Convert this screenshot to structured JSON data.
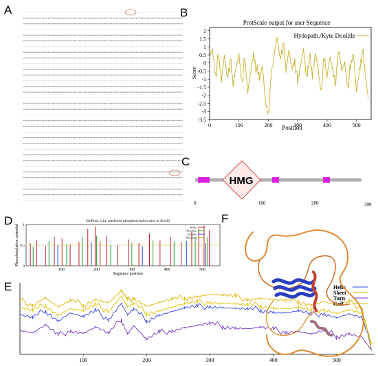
{
  "panels": {
    "a": {
      "letter": "A"
    },
    "b": {
      "letter": "B"
    },
    "c": {
      "letter": "C"
    },
    "d": {
      "letter": "D"
    },
    "e": {
      "letter": "E"
    },
    "f": {
      "letter": "F"
    }
  },
  "protscale": {
    "title": "ProtScale output for user Sequence",
    "legend": "Hydopath./Kyte Doolitle",
    "ylabel": "Score",
    "xlabel": "Position",
    "color": "#c8b030"
  },
  "domain_diagram": {
    "domain_label": "HMG",
    "ticks": [
      "0",
      "100",
      "200",
      "300"
    ],
    "motif_color": "#e020e0",
    "domain_border": "#d05050"
  },
  "netphos": {
    "title": "NetPhos 3.1a: predicted phosphorylation sites in Sox30",
    "ylabel": "Phosphorylation potential",
    "xlabel": "Sequence position",
    "legend": [
      "Serine",
      "Threonine",
      "Tyrosine",
      "Threshold"
    ],
    "colors": [
      "#c03030",
      "#40a040",
      "#3050d0",
      "#c0a000"
    ]
  },
  "secondary": {
    "legend": [
      "Helix",
      "Sheet",
      "Turn",
      "Coil"
    ],
    "colors": [
      "#3040e0",
      "#e0b000",
      "#7030c0",
      "#e0c000"
    ]
  },
  "chart_data": [
    {
      "type": "line",
      "title": "ProtScale output for user Sequence",
      "xlabel": "Position",
      "ylabel": "Score",
      "xlim": [
        0,
        550
      ],
      "ylim": [
        -3.5,
        2.2
      ],
      "x_ticks": [
        "0",
        "100",
        "200",
        "300",
        "400",
        "500"
      ],
      "y_ticks": [
        "2",
        "1.5",
        "1",
        "0.5",
        "0",
        "-0.5",
        "-1",
        "-1.5",
        "-2",
        "-2.5",
        "-3",
        "-3.5"
      ],
      "series": [
        {
          "name": "Hydopath./Kyte Doolitle",
          "x": [
            0,
            10,
            20,
            30,
            40,
            50,
            60,
            70,
            80,
            90,
            100,
            110,
            120,
            130,
            140,
            150,
            160,
            170,
            180,
            190,
            200,
            210,
            220,
            230,
            240,
            250,
            260,
            270,
            280,
            290,
            300,
            310,
            320,
            330,
            340,
            350,
            360,
            370,
            380,
            390,
            400,
            410,
            420,
            430,
            440,
            450,
            460,
            470,
            480,
            490,
            500,
            510,
            520,
            530,
            540
          ],
          "y": [
            0.4,
            0.9,
            -0.6,
            0.3,
            -1.2,
            0.5,
            -0.8,
            0.2,
            -1.5,
            -0.3,
            0.6,
            -1.0,
            0.1,
            -1.9,
            -0.5,
            0.7,
            -0.4,
            -1.1,
            -0.2,
            -2.3,
            -3.0,
            -1.0,
            0.5,
            1.6,
            0.4,
            1.2,
            -0.6,
            0.8,
            -0.3,
            0.3,
            -1.4,
            -0.2,
            0.9,
            -0.8,
            0.5,
            -1.0,
            0.6,
            -0.4,
            -1.6,
            0.2,
            -0.9,
            0.4,
            -0.3,
            -1.2,
            0.7,
            -0.5,
            0.1,
            -1.3,
            -0.4,
            0.5,
            -1.8,
            -0.3,
            0.8,
            -0.9,
            -2.2
          ]
        }
      ]
    },
    {
      "type": "bar",
      "title": "NetPhos 3.1a: predicted phosphorylation sites in Sox30",
      "xlabel": "Sequence position",
      "ylabel": "Phosphorylation potential",
      "xlim": [
        0,
        550
      ],
      "ylim": [
        0,
        1
      ],
      "x_ticks": [
        "100",
        "200",
        "300",
        "400",
        "500"
      ],
      "y_ticks": [
        "0",
        "0.5",
        "1"
      ],
      "threshold": 0.5,
      "series": [
        {
          "name": "Serine",
          "x": [
            12,
            30,
            55,
            80,
            102,
            125,
            150,
            175,
            196,
            210,
            228,
            260,
            290,
            320,
            350,
            380,
            410,
            440,
            470,
            490,
            505,
            520
          ],
          "values": [
            0.55,
            0.62,
            0.48,
            0.7,
            0.66,
            0.52,
            0.58,
            0.9,
            0.95,
            0.6,
            0.72,
            0.5,
            0.64,
            0.55,
            0.78,
            0.61,
            0.7,
            0.58,
            0.82,
            0.9,
            0.97,
            0.86
          ]
        },
        {
          "name": "Threonine",
          "x": [
            20,
            65,
            115,
            160,
            200,
            240,
            300,
            360,
            420,
            480,
            515
          ],
          "values": [
            0.45,
            0.6,
            0.52,
            0.68,
            0.73,
            0.5,
            0.56,
            0.62,
            0.59,
            0.66,
            0.7
          ]
        },
        {
          "name": "Tyrosine",
          "x": [
            90,
            185,
            330,
            455,
            510
          ],
          "values": [
            0.5,
            0.58,
            0.47,
            0.6,
            0.55
          ]
        }
      ]
    },
    {
      "type": "line",
      "title": "",
      "xlim": [
        0,
        560
      ],
      "x_ticks": [
        "100",
        "200",
        "300",
        "400",
        "500"
      ],
      "series": [
        {
          "name": "Helix",
          "x": [
            0,
            20,
            40,
            60,
            80,
            100,
            120,
            140,
            160,
            170,
            180,
            200,
            220,
            240,
            260,
            280,
            300,
            320,
            340,
            360,
            380,
            400,
            420,
            440,
            460,
            480,
            500,
            520,
            540,
            555
          ],
          "values": [
            0.55,
            0.5,
            0.62,
            0.48,
            0.58,
            0.52,
            0.6,
            0.5,
            0.72,
            0.55,
            0.62,
            0.48,
            0.56,
            0.6,
            0.64,
            0.66,
            0.68,
            0.66,
            0.64,
            0.62,
            0.63,
            0.6,
            0.58,
            0.6,
            0.55,
            0.58,
            0.52,
            0.56,
            0.5,
            0.1
          ]
        },
        {
          "name": "Sheet",
          "x": [
            0,
            20,
            40,
            60,
            80,
            100,
            120,
            140,
            160,
            170,
            180,
            200,
            220,
            240,
            260,
            280,
            300,
            320,
            340,
            360,
            380,
            400,
            420,
            440,
            460,
            480,
            500,
            520,
            540,
            555
          ],
          "values": [
            0.75,
            0.7,
            0.8,
            0.66,
            0.74,
            0.7,
            0.78,
            0.72,
            0.88,
            0.75,
            0.8,
            0.68,
            0.72,
            0.76,
            0.8,
            0.82,
            0.84,
            0.82,
            0.8,
            0.78,
            0.79,
            0.76,
            0.74,
            0.75,
            0.7,
            0.74,
            0.68,
            0.72,
            0.66,
            0.15
          ]
        },
        {
          "name": "Turn",
          "x": [
            0,
            20,
            40,
            60,
            80,
            100,
            120,
            140,
            160,
            170,
            180,
            200,
            220,
            240,
            260,
            280,
            300,
            320,
            340,
            360,
            380,
            400,
            420,
            440,
            460,
            480,
            500,
            520,
            540,
            555
          ],
          "values": [
            0.35,
            0.3,
            0.4,
            0.26,
            0.34,
            0.3,
            0.38,
            0.28,
            0.5,
            0.3,
            0.4,
            0.2,
            0.3,
            0.34,
            0.38,
            0.4,
            0.42,
            0.4,
            0.38,
            0.36,
            0.37,
            0.34,
            0.32,
            0.33,
            0.28,
            0.32,
            0.26,
            0.3,
            0.24,
            0.05
          ]
        },
        {
          "name": "Coil",
          "x": [
            0,
            20,
            40,
            60,
            80,
            100,
            120,
            140,
            160,
            170,
            180,
            200,
            220,
            240,
            260,
            280,
            300,
            320,
            340,
            360,
            380,
            400,
            420,
            440,
            460,
            480,
            500,
            520,
            540,
            555
          ],
          "values": [
            0.65,
            0.6,
            0.7,
            0.56,
            0.64,
            0.6,
            0.68,
            0.62,
            0.82,
            0.66,
            0.7,
            0.58,
            0.62,
            0.66,
            0.7,
            0.72,
            0.74,
            0.72,
            0.7,
            0.68,
            0.69,
            0.66,
            0.64,
            0.65,
            0.6,
            0.64,
            0.58,
            0.62,
            0.56,
            0.12
          ]
        }
      ]
    }
  ]
}
